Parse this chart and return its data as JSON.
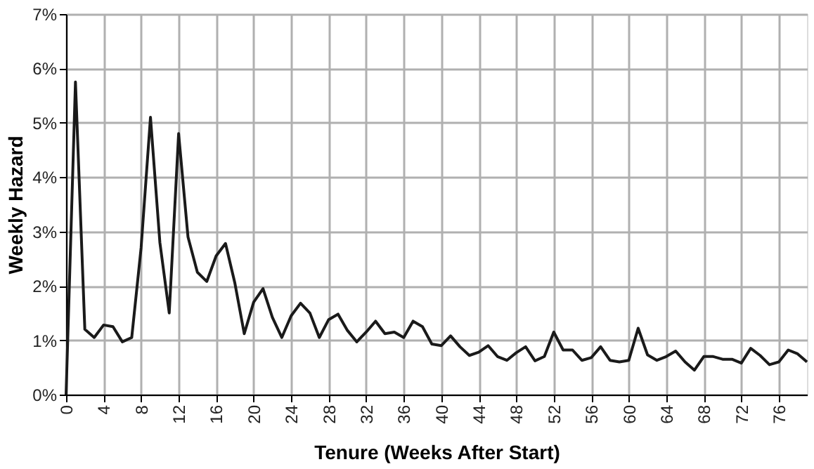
{
  "chart_data": {
    "type": "line",
    "xlabel": "Tenure (Weeks After Start)",
    "ylabel": "Weekly Hazard",
    "x": [
      0,
      1,
      2,
      3,
      4,
      5,
      6,
      7,
      8,
      9,
      10,
      11,
      12,
      13,
      14,
      15,
      16,
      17,
      18,
      19,
      20,
      21,
      22,
      23,
      24,
      25,
      26,
      27,
      28,
      29,
      30,
      31,
      32,
      33,
      34,
      35,
      36,
      37,
      38,
      39,
      40,
      41,
      42,
      43,
      44,
      45,
      46,
      47,
      48,
      49,
      50,
      51,
      52,
      53,
      54,
      55,
      56,
      57,
      58,
      59,
      60,
      61,
      62,
      63,
      64,
      65,
      66,
      67,
      68,
      69,
      70,
      71,
      72,
      73,
      74,
      75,
      76,
      77,
      78,
      79
    ],
    "series": [
      {
        "color": "#1a1a1a",
        "values": [
          0,
          5.75,
          1.2,
          1.05,
          1.28,
          1.25,
          0.97,
          1.05,
          2.7,
          5.1,
          2.8,
          1.5,
          4.8,
          2.9,
          2.25,
          2.08,
          2.55,
          2.78,
          2.05,
          1.12,
          1.7,
          1.95,
          1.42,
          1.05,
          1.45,
          1.68,
          1.5,
          1.05,
          1.38,
          1.48,
          1.18,
          0.97,
          1.15,
          1.35,
          1.12,
          1.15,
          1.05,
          1.35,
          1.25,
          0.93,
          0.9,
          1.08,
          0.88,
          0.72,
          0.78,
          0.9,
          0.7,
          0.63,
          0.77,
          0.88,
          0.62,
          0.7,
          1.15,
          0.82,
          0.82,
          0.63,
          0.68,
          0.88,
          0.63,
          0.6,
          0.63,
          1.22,
          0.73,
          0.63,
          0.7,
          0.8,
          0.6,
          0.45,
          0.7,
          0.7,
          0.65,
          0.65,
          0.58,
          0.85,
          0.72,
          0.55,
          0.6,
          0.82,
          0.75,
          0.6
        ]
      }
    ],
    "xlim": [
      0,
      79
    ],
    "xticks": [
      0,
      4,
      8,
      12,
      16,
      20,
      24,
      28,
      32,
      36,
      40,
      44,
      48,
      52,
      56,
      60,
      64,
      68,
      72,
      76
    ],
    "ylim": [
      0,
      7
    ],
    "yticks": [
      {
        "value": 0,
        "label": "0%"
      },
      {
        "value": 1,
        "label": "1%"
      },
      {
        "value": 2,
        "label": "2%"
      },
      {
        "value": 3,
        "label": "3%"
      },
      {
        "value": 4,
        "label": "4%"
      },
      {
        "value": 5,
        "label": "5%"
      },
      {
        "value": 6,
        "label": "6%"
      },
      {
        "value": 7,
        "label": "7%"
      }
    ],
    "grid": true,
    "marker": "none",
    "line_style": "solid"
  }
}
